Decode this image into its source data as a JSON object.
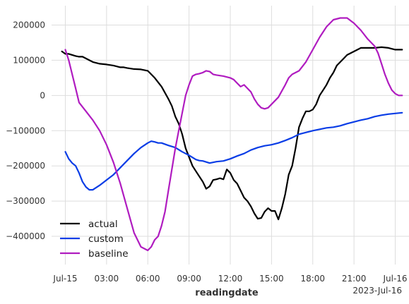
{
  "chart_data": {
    "type": "line",
    "xlabel": "readingdate",
    "x_offset_label": "2023-Jul-16",
    "grid": true,
    "legend_position": "lower-left",
    "x_tick_labels": [
      "Jul-15",
      "03:00",
      "06:00",
      "09:00",
      "12:00",
      "15:00",
      "18:00",
      "21:00",
      "Jul-16"
    ],
    "y_tick_values": [
      200000,
      100000,
      0,
      -100000,
      -200000,
      -300000,
      -400000
    ],
    "y_tick_labels": [
      "200000",
      "100000",
      "0",
      "−100000",
      "−200000",
      "−300000",
      "−400000"
    ],
    "ylim": [
      -480000,
      255000
    ],
    "xlim_hours": [
      -1.0,
      25.0
    ],
    "series": [
      {
        "name": "actual",
        "color": "#000000",
        "x_hours": [
          -0.25,
          0.0,
          0.25,
          0.5,
          0.75,
          1.0,
          1.25,
          1.5,
          1.75,
          2.0,
          2.5,
          3.0,
          3.5,
          4.0,
          4.25,
          4.5,
          5.0,
          5.5,
          5.75,
          6.0,
          6.5,
          7.0,
          7.5,
          7.75,
          8.0,
          8.25,
          8.5,
          8.75,
          9.0,
          9.25,
          9.5,
          9.75,
          10.0,
          10.25,
          10.5,
          10.75,
          11.0,
          11.25,
          11.5,
          11.75,
          12.0,
          12.25,
          12.5,
          12.75,
          13.0,
          13.25,
          13.5,
          13.75,
          14.0,
          14.25,
          14.5,
          14.75,
          15.0,
          15.25,
          15.5,
          15.75,
          16.0,
          16.25,
          16.5,
          16.75,
          17.0,
          17.25,
          17.5,
          17.75,
          18.0,
          18.25,
          18.5,
          18.75,
          19.0,
          19.25,
          19.5,
          19.75,
          20.0,
          20.25,
          20.5,
          20.75,
          21.0,
          21.5,
          22.0,
          22.5,
          23.0,
          23.5,
          24.0,
          24.25,
          24.5
        ],
        "values": [
          125000,
          118000,
          118000,
          115000,
          112000,
          110000,
          110000,
          105000,
          100000,
          95000,
          90000,
          88000,
          85000,
          80000,
          80000,
          78000,
          75000,
          74000,
          72000,
          70000,
          50000,
          25000,
          -10000,
          -30000,
          -60000,
          -80000,
          -110000,
          -150000,
          -175000,
          -200000,
          -215000,
          -230000,
          -245000,
          -265000,
          -258000,
          -240000,
          -238000,
          -235000,
          -238000,
          -210000,
          -220000,
          -240000,
          -250000,
          -270000,
          -290000,
          -300000,
          -315000,
          -335000,
          -350000,
          -348000,
          -330000,
          -320000,
          -328000,
          -328000,
          -352000,
          -320000,
          -280000,
          -225000,
          -200000,
          -150000,
          -90000,
          -65000,
          -45000,
          -45000,
          -40000,
          -25000,
          0,
          15000,
          30000,
          50000,
          65000,
          85000,
          95000,
          105000,
          115000,
          120000,
          125000,
          135000,
          135000,
          135000,
          137000,
          135000,
          130000,
          130000,
          130000
        ]
      },
      {
        "name": "custom",
        "color": "#0a3de6",
        "x_hours": [
          0.0,
          0.25,
          0.5,
          0.75,
          1.0,
          1.25,
          1.5,
          1.75,
          2.0,
          2.5,
          3.0,
          3.5,
          4.0,
          4.5,
          5.0,
          5.5,
          6.0,
          6.25,
          6.5,
          6.75,
          7.0,
          7.5,
          8.0,
          8.5,
          9.0,
          9.5,
          9.75,
          10.0,
          10.5,
          11.0,
          11.5,
          12.0,
          12.5,
          13.0,
          13.5,
          14.0,
          14.5,
          15.0,
          15.5,
          16.0,
          16.5,
          17.0,
          17.5,
          18.0,
          18.5,
          19.0,
          19.5,
          20.0,
          20.5,
          21.0,
          21.5,
          22.0,
          22.5,
          23.0,
          23.5,
          24.0,
          24.5
        ],
        "values": [
          -160000,
          -180000,
          -192000,
          -200000,
          -220000,
          -245000,
          -260000,
          -268000,
          -268000,
          -255000,
          -240000,
          -225000,
          -205000,
          -185000,
          -165000,
          -148000,
          -135000,
          -130000,
          -132000,
          -135000,
          -135000,
          -142000,
          -148000,
          -160000,
          -170000,
          -182000,
          -185000,
          -186000,
          -192000,
          -188000,
          -186000,
          -180000,
          -172000,
          -165000,
          -155000,
          -148000,
          -143000,
          -140000,
          -135000,
          -128000,
          -120000,
          -110000,
          -105000,
          -100000,
          -96000,
          -92000,
          -90000,
          -86000,
          -80000,
          -75000,
          -70000,
          -66000,
          -60000,
          -56000,
          -53000,
          -51000,
          -49000
        ]
      },
      {
        "name": "baseline",
        "color": "#b01cc0",
        "x_hours": [
          0.0,
          0.25,
          0.5,
          0.75,
          1.0,
          1.5,
          2.0,
          2.5,
          3.0,
          3.5,
          4.0,
          4.5,
          5.0,
          5.5,
          6.0,
          6.25,
          6.5,
          6.75,
          7.0,
          7.25,
          7.5,
          7.75,
          8.0,
          8.25,
          8.5,
          8.75,
          9.0,
          9.25,
          9.5,
          9.75,
          10.0,
          10.25,
          10.5,
          10.75,
          11.0,
          11.5,
          12.0,
          12.25,
          12.5,
          12.75,
          13.0,
          13.25,
          13.5,
          13.75,
          14.0,
          14.25,
          14.5,
          14.75,
          15.0,
          15.5,
          16.0,
          16.25,
          16.5,
          17.0,
          17.5,
          18.0,
          18.5,
          19.0,
          19.5,
          20.0,
          20.5,
          21.0,
          21.5,
          22.0,
          22.5,
          22.75,
          23.0,
          23.25,
          23.5,
          23.75,
          24.0,
          24.25,
          24.5
        ],
        "values": [
          130000,
          100000,
          60000,
          20000,
          -20000,
          -45000,
          -70000,
          -100000,
          -140000,
          -190000,
          -250000,
          -320000,
          -390000,
          -430000,
          -440000,
          -430000,
          -410000,
          -400000,
          -370000,
          -330000,
          -270000,
          -210000,
          -150000,
          -100000,
          -50000,
          0,
          30000,
          55000,
          60000,
          62000,
          65000,
          70000,
          68000,
          60000,
          58000,
          55000,
          50000,
          45000,
          35000,
          25000,
          30000,
          20000,
          10000,
          -10000,
          -25000,
          -35000,
          -38000,
          -35000,
          -25000,
          -5000,
          30000,
          50000,
          60000,
          70000,
          95000,
          130000,
          165000,
          195000,
          215000,
          220000,
          220000,
          205000,
          185000,
          160000,
          140000,
          120000,
          90000,
          60000,
          35000,
          15000,
          5000,
          0,
          0
        ]
      }
    ]
  }
}
